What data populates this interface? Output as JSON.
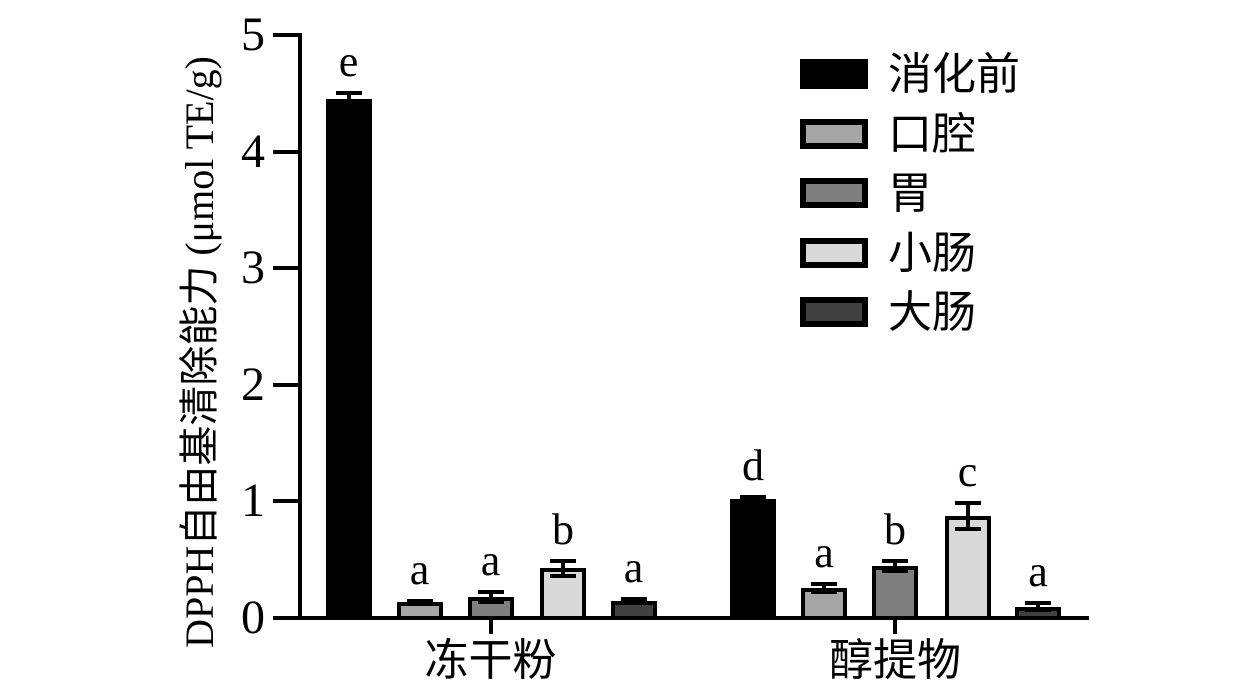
{
  "chart_data": {
    "type": "bar",
    "title": "",
    "ylabel": "DPPH自由基清除能力 (μmol TE/g)",
    "xlabel": "",
    "ylim": [
      0,
      5
    ],
    "yticks": [
      0,
      1,
      2,
      3,
      4,
      5
    ],
    "grid": false,
    "legend_position": "upper right",
    "categories": [
      "冻干粉",
      "醇提物"
    ],
    "series": [
      {
        "name": "消化前",
        "color": "#000000",
        "values": [
          4.43,
          1.0
        ],
        "errors": [
          0.07,
          0.04
        ],
        "letters": [
          "e",
          "d"
        ]
      },
      {
        "name": "口腔",
        "color": "#a6a6a6",
        "values": [
          0.12,
          0.24
        ],
        "errors": [
          0.03,
          0.05
        ],
        "letters": [
          "a",
          "a"
        ]
      },
      {
        "name": "胃",
        "color": "#7f7f7f",
        "values": [
          0.16,
          0.43
        ],
        "errors": [
          0.06,
          0.06
        ],
        "letters": [
          "a",
          "b"
        ]
      },
      {
        "name": "小肠",
        "color": "#d9d9d9",
        "values": [
          0.41,
          0.86
        ],
        "errors": [
          0.08,
          0.13
        ],
        "letters": [
          "b",
          "c"
        ]
      },
      {
        "name": "大肠",
        "color": "#404040",
        "values": [
          0.13,
          0.08
        ],
        "errors": [
          0.03,
          0.05
        ],
        "letters": [
          "a",
          "a"
        ]
      }
    ],
    "axis_color": "#000000",
    "error_bar_color": "#000000"
  }
}
